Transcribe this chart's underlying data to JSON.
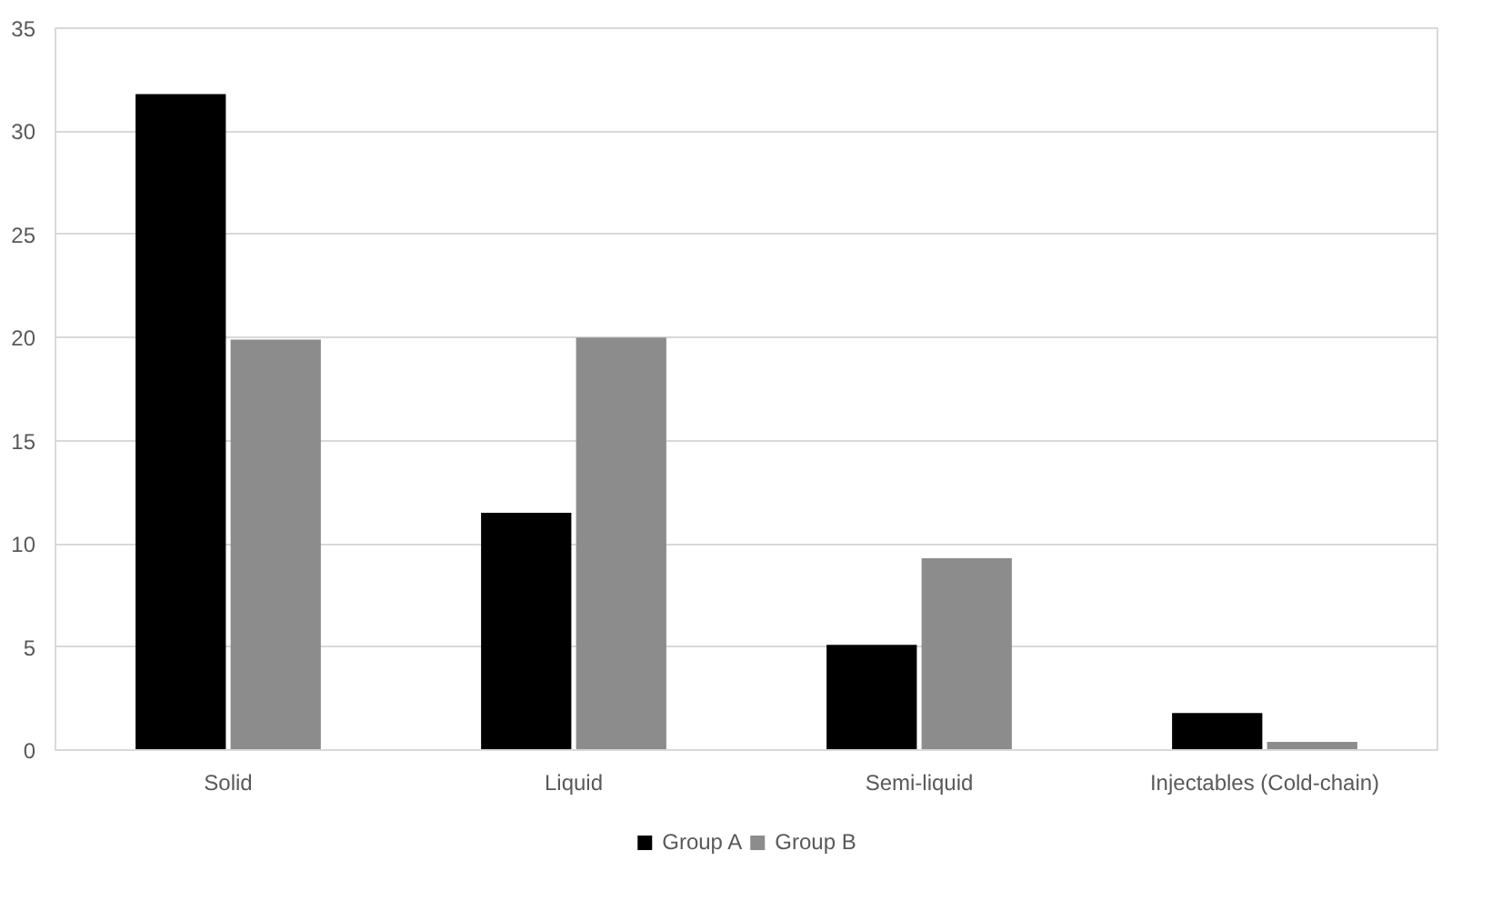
{
  "chart_data": {
    "type": "bar",
    "categories": [
      "Solid",
      "Liquid",
      "Semi-liquid",
      "Injectables (Cold-chain)"
    ],
    "series": [
      {
        "name": "Group A",
        "color": "#000000",
        "values": [
          31.8,
          11.5,
          5.1,
          1.8
        ]
      },
      {
        "name": "Group B",
        "color": "#8c8c8c",
        "values": [
          19.9,
          20.0,
          9.3,
          0.4
        ]
      }
    ],
    "ylim": [
      0,
      35
    ],
    "yticks": [
      0,
      5,
      10,
      15,
      20,
      25,
      30,
      35
    ],
    "grid": "y",
    "legend": "bottom"
  }
}
